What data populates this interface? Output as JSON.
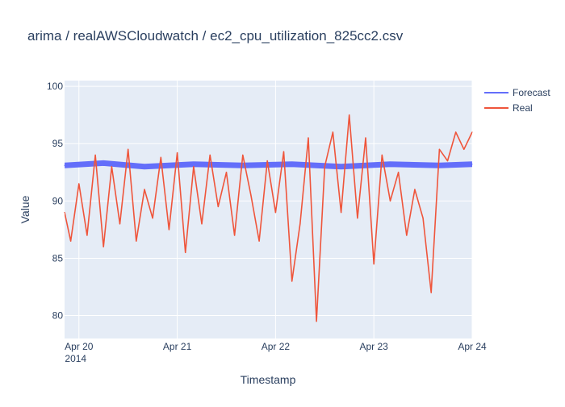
{
  "chart_data": {
    "type": "line",
    "title": "arima / realAWSCloudwatch / ec2_cpu_utilization_825cc2.csv",
    "xlabel": "Timestamp",
    "ylabel": "Value",
    "x_range": [
      "2014-04-19 20:30",
      "2014-04-24 00:00"
    ],
    "ylim": [
      78,
      100.5
    ],
    "x_ticks": [
      {
        "date": "2014-04-20",
        "label": "Apr 20",
        "sublabel": "2014"
      },
      {
        "date": "2014-04-21",
        "label": "Apr 21",
        "sublabel": ""
      },
      {
        "date": "2014-04-22",
        "label": "Apr 22",
        "sublabel": ""
      },
      {
        "date": "2014-04-23",
        "label": "Apr 23",
        "sublabel": ""
      },
      {
        "date": "2014-04-24",
        "label": "Apr 24",
        "sublabel": ""
      }
    ],
    "y_ticks": [
      80,
      85,
      90,
      95,
      100
    ],
    "grid": true,
    "legend_position": "top-right",
    "series": [
      {
        "name": "Forecast",
        "color": "#636efa",
        "x": [
          "2014-04-19 20:30",
          "2014-04-20 06:00",
          "2014-04-20 16:00",
          "2014-04-21 04:00",
          "2014-04-21 16:00",
          "2014-04-22 04:00",
          "2014-04-22 16:00",
          "2014-04-23 04:00",
          "2014-04-23 16:00",
          "2014-04-24 00:00"
        ],
        "values": [
          93.1,
          93.3,
          93.0,
          93.2,
          93.1,
          93.2,
          93.0,
          93.2,
          93.1,
          93.2
        ]
      },
      {
        "name": "Real",
        "color": "#ef553b",
        "x": [
          "2014-04-19 20:30",
          "2014-04-19 22:00",
          "2014-04-20 00:00",
          "2014-04-20 02:00",
          "2014-04-20 04:00",
          "2014-04-20 06:00",
          "2014-04-20 08:00",
          "2014-04-20 10:00",
          "2014-04-20 12:00",
          "2014-04-20 14:00",
          "2014-04-20 16:00",
          "2014-04-20 18:00",
          "2014-04-20 20:00",
          "2014-04-20 22:00",
          "2014-04-21 00:00",
          "2014-04-21 02:00",
          "2014-04-21 04:00",
          "2014-04-21 06:00",
          "2014-04-21 08:00",
          "2014-04-21 10:00",
          "2014-04-21 12:00",
          "2014-04-21 14:00",
          "2014-04-21 16:00",
          "2014-04-21 18:00",
          "2014-04-21 20:00",
          "2014-04-21 22:00",
          "2014-04-22 00:00",
          "2014-04-22 02:00",
          "2014-04-22 04:00",
          "2014-04-22 06:00",
          "2014-04-22 08:00",
          "2014-04-22 10:00",
          "2014-04-22 12:00",
          "2014-04-22 14:00",
          "2014-04-22 16:00",
          "2014-04-22 18:00",
          "2014-04-22 20:00",
          "2014-04-22 22:00",
          "2014-04-23 00:00",
          "2014-04-23 02:00",
          "2014-04-23 04:00",
          "2014-04-23 06:00",
          "2014-04-23 08:00",
          "2014-04-23 10:00",
          "2014-04-23 12:00",
          "2014-04-23 14:00",
          "2014-04-23 16:00",
          "2014-04-23 18:00",
          "2014-04-23 20:00",
          "2014-04-23 22:00",
          "2014-04-24 00:00"
        ],
        "values": [
          89.0,
          86.5,
          91.5,
          87.0,
          94.0,
          86.0,
          93.0,
          88.0,
          94.5,
          86.5,
          91.0,
          88.5,
          93.8,
          87.5,
          94.2,
          85.5,
          93.0,
          88.0,
          94.0,
          89.5,
          92.5,
          87.0,
          94.0,
          90.5,
          86.5,
          93.5,
          89.0,
          94.3,
          83.0,
          88.0,
          95.5,
          79.5,
          93.0,
          96.0,
          89.0,
          97.5,
          88.5,
          95.5,
          84.5,
          94.0,
          90.0,
          92.5,
          87.0,
          91.0,
          88.5,
          82.0,
          94.5,
          93.5,
          96.0,
          94.5,
          96.0
        ]
      }
    ]
  }
}
